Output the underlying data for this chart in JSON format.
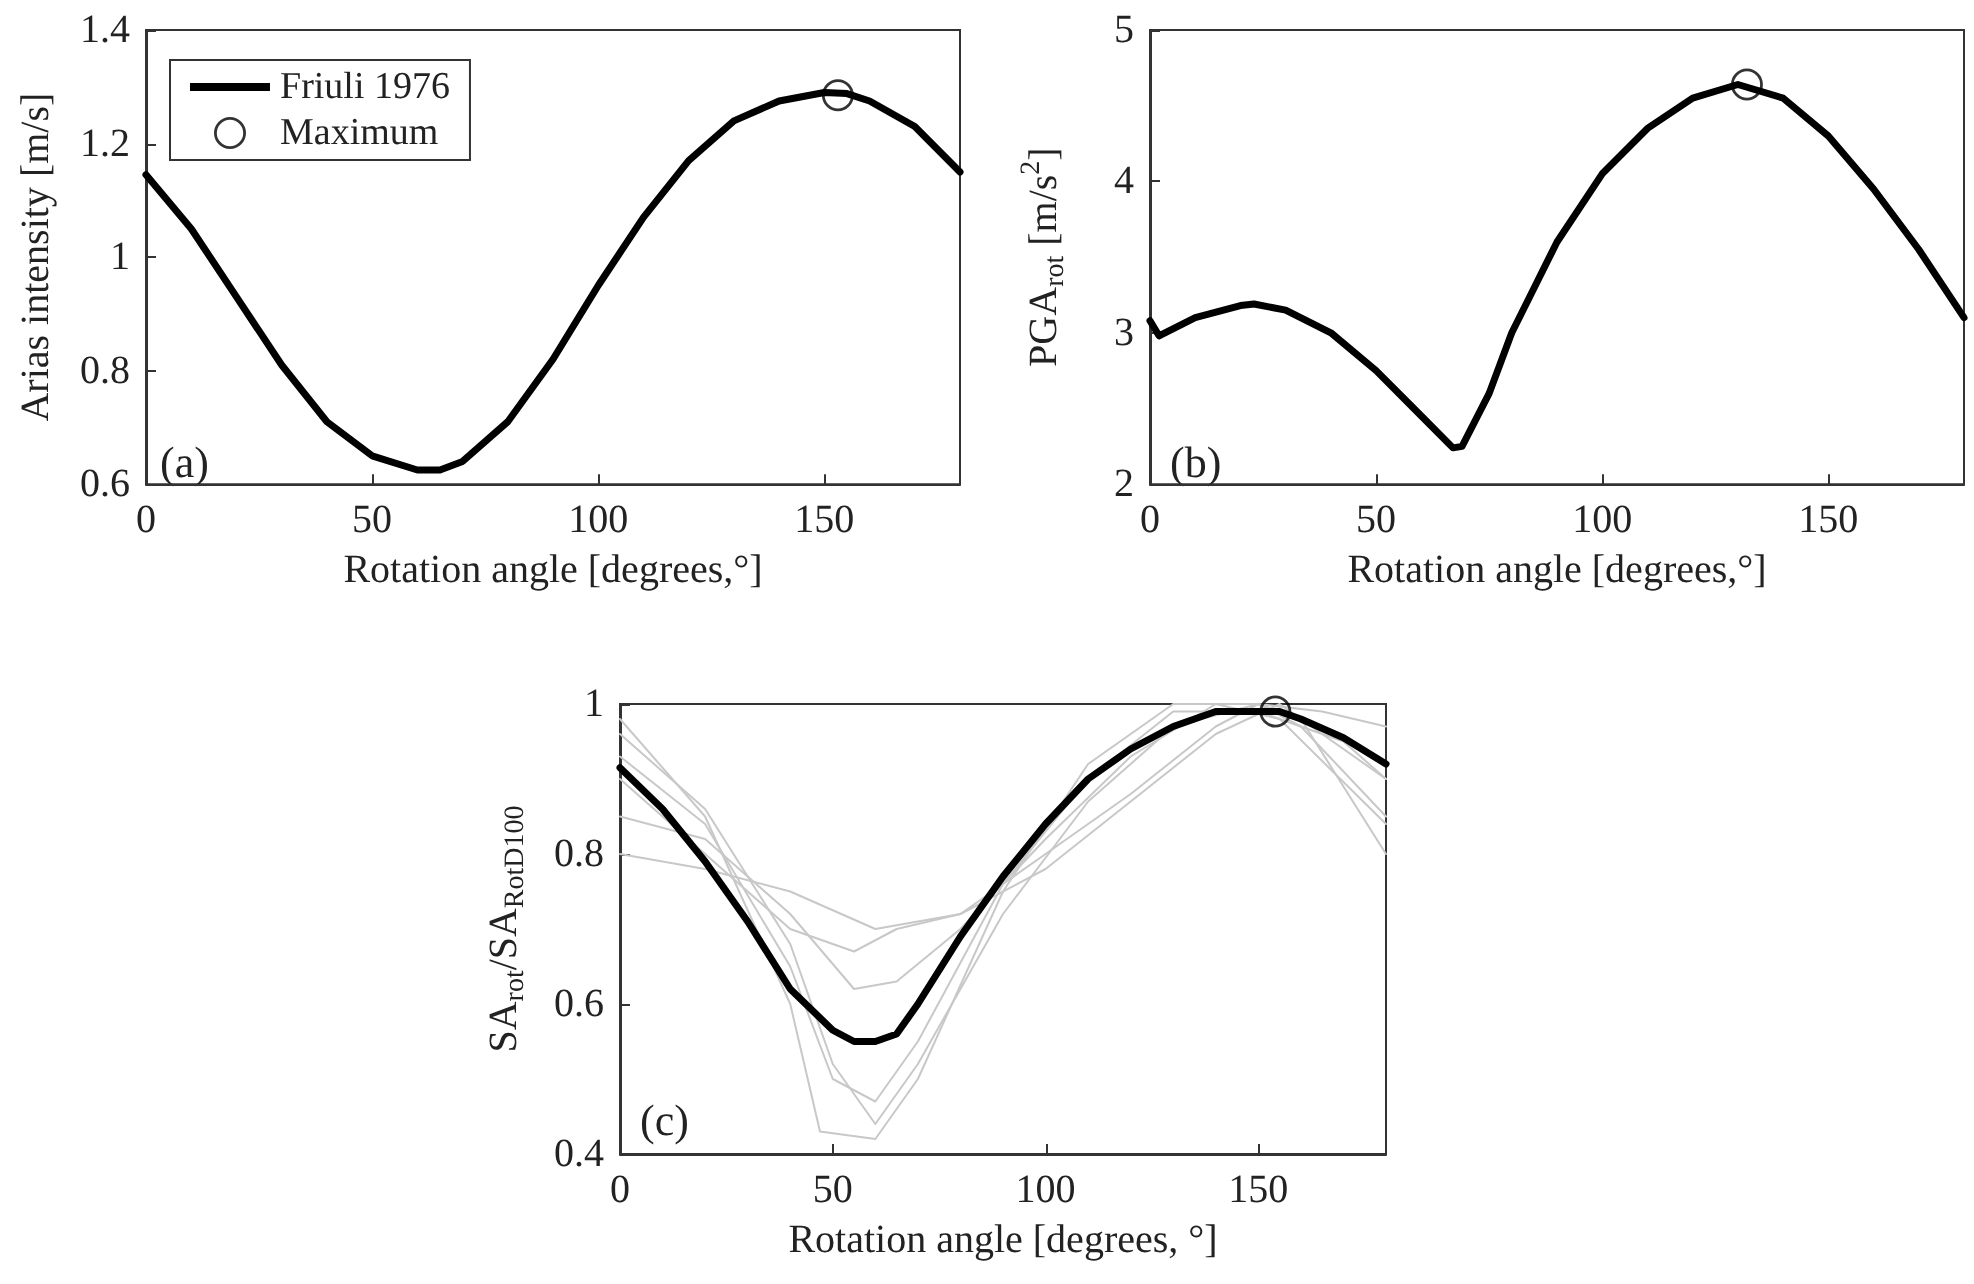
{
  "chart_data": [
    {
      "type": "line",
      "xlabel": "Rotation angle [degrees,°]",
      "ylabel": "Arias intensity [m/s]",
      "xlim": [
        0,
        180
      ],
      "xticks": [
        0,
        50,
        100,
        150
      ],
      "ylim": [
        0.6,
        1.4
      ],
      "yticks": [
        0.6,
        0.8,
        1,
        1.2,
        1.4
      ],
      "grid": false,
      "legend": "top left",
      "annotations": [
        "(a)"
      ],
      "series": [
        {
          "name": "Friuli 1976",
          "color": "#000000",
          "marker": "none",
          "x": [
            0,
            10,
            20,
            30,
            40,
            50,
            60,
            65,
            70,
            80,
            90,
            100,
            110,
            120,
            130,
            140,
            150,
            155,
            160,
            170,
            180
          ],
          "values": [
            1.145,
            1.05,
            0.93,
            0.81,
            0.71,
            0.65,
            0.625,
            0.625,
            0.64,
            0.71,
            0.82,
            0.95,
            1.07,
            1.17,
            1.24,
            1.275,
            1.29,
            1.288,
            1.275,
            1.23,
            1.15
          ]
        },
        {
          "type": "scatter",
          "name": "Maximum",
          "color": "#000000",
          "marker": "circle",
          "x": [
            153
          ],
          "values": [
            1.285
          ]
        }
      ]
    },
    {
      "type": "line",
      "xlabel": "Rotation angle [degrees,°]",
      "ylabel": "PGA$_{rot}$ [m/s$^{2}$]",
      "xlim": [
        0,
        180
      ],
      "xticks": [
        0,
        50,
        100,
        150
      ],
      "ylim": [
        2,
        5
      ],
      "yticks": [
        2,
        3,
        4,
        5
      ],
      "grid": false,
      "legend": false,
      "annotations": [
        "(b)"
      ],
      "series": [
        {
          "color": "#000000",
          "marker": "none",
          "x": [
            0,
            2,
            10,
            20,
            23,
            30,
            40,
            50,
            60,
            67,
            69,
            75,
            80,
            90,
            100,
            110,
            120,
            130,
            140,
            150,
            160,
            170,
            180
          ],
          "values": [
            3.08,
            2.98,
            3.1,
            3.18,
            3.19,
            3.15,
            3.0,
            2.75,
            2.45,
            2.24,
            2.25,
            2.6,
            3.0,
            3.6,
            4.05,
            4.35,
            4.55,
            4.64,
            4.55,
            4.3,
            3.95,
            3.55,
            3.1
          ]
        },
        {
          "type": "scatter",
          "color": "#000000",
          "marker": "circle",
          "x": [
            132
          ],
          "values": [
            4.64
          ]
        }
      ]
    },
    {
      "type": "line",
      "xlabel": "Rotation angle [degrees, °]",
      "ylabel": "SA$_{rot}$/SA$_{RotD100}$",
      "xlim": [
        0,
        180
      ],
      "xticks": [
        0,
        50,
        100,
        150
      ],
      "ylim": [
        0.4,
        1
      ],
      "yticks": [
        0.4,
        0.6,
        0.8,
        1
      ],
      "grid": false,
      "legend": false,
      "annotations": [
        "(c)"
      ],
      "series": [
        {
          "color": "#c8c8c8",
          "marker": "none",
          "x": [
            0,
            20,
            40,
            47,
            60,
            70,
            90,
            110,
            130,
            150,
            160,
            180
          ],
          "values": [
            0.98,
            0.85,
            0.6,
            0.43,
            0.42,
            0.5,
            0.75,
            0.92,
            1.0,
            1.0,
            0.97,
            0.85
          ]
        },
        {
          "color": "#c8c8c8",
          "marker": "none",
          "x": [
            0,
            20,
            40,
            60,
            80,
            100,
            120,
            140,
            150,
            160,
            180
          ],
          "values": [
            0.8,
            0.78,
            0.75,
            0.7,
            0.72,
            0.8,
            0.88,
            0.97,
            1.0,
            0.98,
            0.8
          ]
        },
        {
          "color": "#c8c8c8",
          "marker": "none",
          "x": [
            0,
            20,
            40,
            50,
            60,
            70,
            90,
            110,
            130,
            150,
            170,
            180
          ],
          "values": [
            0.93,
            0.84,
            0.65,
            0.5,
            0.47,
            0.55,
            0.76,
            0.9,
            0.99,
            0.99,
            0.95,
            0.9
          ]
        },
        {
          "color": "#c8c8c8",
          "marker": "none",
          "x": [
            0,
            20,
            40,
            55,
            65,
            80,
            100,
            120,
            140,
            155,
            180
          ],
          "values": [
            0.85,
            0.82,
            0.72,
            0.62,
            0.63,
            0.7,
            0.82,
            0.93,
            1.0,
            0.98,
            0.84
          ]
        },
        {
          "color": "#c8c8c8",
          "marker": "none",
          "x": [
            0,
            20,
            40,
            50,
            60,
            70,
            90,
            110,
            130,
            150,
            165,
            180
          ],
          "values": [
            0.96,
            0.86,
            0.68,
            0.52,
            0.44,
            0.52,
            0.72,
            0.87,
            0.97,
            1.0,
            0.99,
            0.97
          ]
        },
        {
          "color": "#c8c8c8",
          "marker": "none",
          "x": [
            0,
            20,
            40,
            55,
            65,
            80,
            100,
            120,
            140,
            155,
            180
          ],
          "values": [
            0.9,
            0.8,
            0.7,
            0.67,
            0.7,
            0.72,
            0.78,
            0.87,
            0.96,
            1.0,
            0.9
          ]
        },
        {
          "color": "#000000",
          "marker": "none",
          "x": [
            0,
            10,
            20,
            30,
            40,
            50,
            55,
            60,
            65,
            70,
            80,
            90,
            100,
            110,
            120,
            130,
            140,
            150,
            155,
            160,
            170,
            180
          ],
          "values": [
            0.915,
            0.86,
            0.79,
            0.71,
            0.62,
            0.565,
            0.55,
            0.55,
            0.56,
            0.6,
            0.69,
            0.77,
            0.84,
            0.9,
            0.94,
            0.97,
            0.99,
            0.99,
            0.99,
            0.98,
            0.955,
            0.92
          ]
        },
        {
          "type": "scatter",
          "color": "#000000",
          "marker": "circle",
          "x": [
            154
          ],
          "values": [
            0.99
          ]
        }
      ]
    }
  ]
}
